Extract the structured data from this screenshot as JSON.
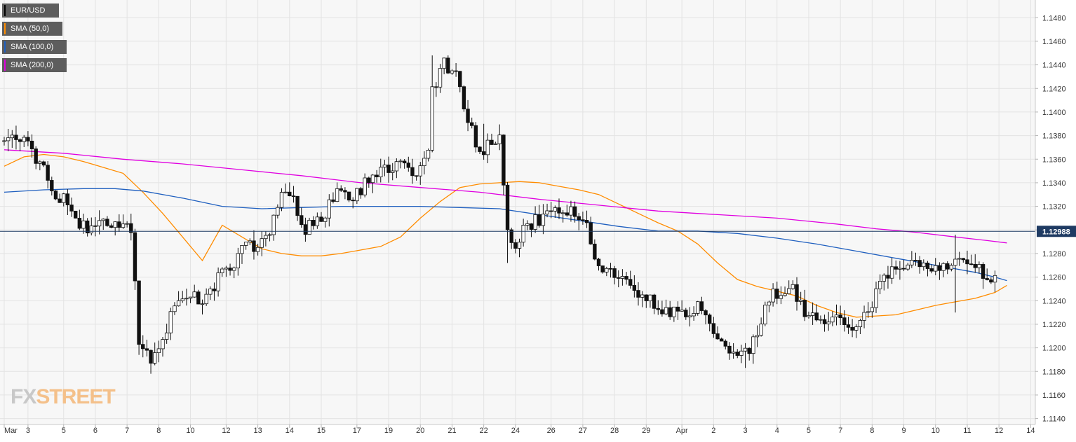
{
  "legend": [
    {
      "label": "EUR/USD",
      "color": "#000000"
    },
    {
      "label": "SMA (50,0)",
      "color": "#ff8c00"
    },
    {
      "label": "SMA (100,0)",
      "color": "#1f5fbf"
    },
    {
      "label": "SMA (200,0)",
      "color": "#e000e0"
    }
  ],
  "watermark": {
    "fx": "FX",
    "street": "STREET"
  },
  "chart_data": {
    "type": "candlestick",
    "title": "",
    "xlabel": "",
    "ylabel": "",
    "grid": true,
    "legend_position": "top-left",
    "ylim": [
      1.1135,
      1.1495
    ],
    "x_count": 250,
    "yticks": [
      "1.1140",
      "1.1160",
      "1.1180",
      "1.1200",
      "1.1220",
      "1.1240",
      "1.1260",
      "1.1280",
      "1.1300",
      "1.1320",
      "1.1340",
      "1.1360",
      "1.1380",
      "1.1400",
      "1.1420",
      "1.1440",
      "1.1460",
      "1.1480"
    ],
    "xticks": [
      {
        "i": 0,
        "label": "Mar"
      },
      {
        "i": 6,
        "label": "3"
      },
      {
        "i": 15,
        "label": "5"
      },
      {
        "i": 23,
        "label": "6"
      },
      {
        "i": 31,
        "label": "7"
      },
      {
        "i": 39,
        "label": "8"
      },
      {
        "i": 47,
        "label": "10"
      },
      {
        "i": 56,
        "label": "12"
      },
      {
        "i": 64,
        "label": "13"
      },
      {
        "i": 72,
        "label": "14"
      },
      {
        "i": 80,
        "label": "15"
      },
      {
        "i": 89,
        "label": "17"
      },
      {
        "i": 97,
        "label": "19"
      },
      {
        "i": 105,
        "label": "20"
      },
      {
        "i": 113,
        "label": "21"
      },
      {
        "i": 121,
        "label": "22"
      },
      {
        "i": 129,
        "label": "24"
      },
      {
        "i": 138,
        "label": "26"
      },
      {
        "i": 146,
        "label": "27"
      },
      {
        "i": 154,
        "label": "28"
      },
      {
        "i": 162,
        "label": "29"
      },
      {
        "i": 171,
        "label": "Apr"
      },
      {
        "i": 179,
        "label": "2"
      },
      {
        "i": 187,
        "label": "3"
      },
      {
        "i": 195,
        "label": "4"
      },
      {
        "i": 203,
        "label": "5"
      },
      {
        "i": 211,
        "label": "7"
      },
      {
        "i": 219,
        "label": "8"
      },
      {
        "i": 227,
        "label": "9"
      },
      {
        "i": 235,
        "label": "10"
      },
      {
        "i": 243,
        "label": "11"
      },
      {
        "i": 251,
        "label": "12"
      },
      {
        "i": 259,
        "label": "14"
      }
    ],
    "current_price": {
      "value": 1.12988,
      "label": "1.12988"
    },
    "anchors": [
      [
        0,
        1.1375
      ],
      [
        3,
        1.1382
      ],
      [
        6,
        1.1372
      ],
      [
        8,
        1.1355
      ],
      [
        10,
        1.135
      ],
      [
        12,
        1.1335
      ],
      [
        15,
        1.1325
      ],
      [
        19,
        1.1305
      ],
      [
        22,
        1.1298
      ],
      [
        25,
        1.131
      ],
      [
        30,
        1.1305
      ],
      [
        32,
        1.13
      ],
      [
        34,
        1.1205
      ],
      [
        37,
        1.119
      ],
      [
        42,
        1.1225
      ],
      [
        46,
        1.1245
      ],
      [
        50,
        1.124
      ],
      [
        54,
        1.1258
      ],
      [
        58,
        1.127
      ],
      [
        61,
        1.129
      ],
      [
        64,
        1.128
      ],
      [
        67,
        1.13
      ],
      [
        70,
        1.133
      ],
      [
        73,
        1.1325
      ],
      [
        76,
        1.13
      ],
      [
        80,
        1.131
      ],
      [
        84,
        1.133
      ],
      [
        88,
        1.1325
      ],
      [
        92,
        1.1345
      ],
      [
        96,
        1.135
      ],
      [
        100,
        1.1355
      ],
      [
        104,
        1.135
      ],
      [
        107,
        1.137
      ],
      [
        108,
        1.142
      ],
      [
        111,
        1.144
      ],
      [
        114,
        1.143
      ],
      [
        117,
        1.1395
      ],
      [
        120,
        1.1365
      ],
      [
        123,
        1.1375
      ],
      [
        125,
        1.1382
      ],
      [
        127,
        1.13
      ],
      [
        129,
        1.129
      ],
      [
        132,
        1.1305
      ],
      [
        136,
        1.131
      ],
      [
        140,
        1.132
      ],
      [
        144,
        1.1315
      ],
      [
        147,
        1.131
      ],
      [
        149,
        1.1275
      ],
      [
        152,
        1.1265
      ],
      [
        156,
        1.1258
      ],
      [
        160,
        1.1245
      ],
      [
        164,
        1.1238
      ],
      [
        168,
        1.123
      ],
      [
        172,
        1.1232
      ],
      [
        176,
        1.1235
      ],
      [
        179,
        1.121
      ],
      [
        183,
        1.12
      ],
      [
        186,
        1.1195
      ],
      [
        188,
        1.1195
      ],
      [
        191,
        1.1225
      ],
      [
        194,
        1.1245
      ],
      [
        199,
        1.125
      ],
      [
        203,
        1.1225
      ],
      [
        207,
        1.1225
      ],
      [
        210,
        1.1222
      ],
      [
        213,
        1.1218
      ],
      [
        216,
        1.1222
      ],
      [
        219,
        1.1238
      ],
      [
        222,
        1.1265
      ],
      [
        226,
        1.1265
      ],
      [
        230,
        1.1272
      ],
      [
        234,
        1.1268
      ],
      [
        238,
        1.127
      ],
      [
        242,
        1.1275
      ],
      [
        245,
        1.127
      ],
      [
        248,
        1.1262
      ],
      [
        250,
        1.126
      ],
      [
        252,
        1.129
      ],
      [
        254,
        1.1305
      ],
      [
        256,
        1.1305
      ],
      [
        258,
        1.1299
      ]
    ],
    "spikes": [
      {
        "i": 34,
        "low": 1.1205
      },
      {
        "i": 37,
        "low": 1.1178
      },
      {
        "i": 108,
        "high": 1.1448
      },
      {
        "i": 121,
        "high": 1.139
      },
      {
        "i": 127,
        "low": 1.1272
      },
      {
        "i": 187,
        "low": 1.1183
      },
      {
        "i": 240,
        "low": 1.123
      },
      {
        "i": 240,
        "high": 1.1296
      },
      {
        "i": 255,
        "high": 1.1327
      }
    ],
    "series": [
      {
        "name": "SMA (50,0)",
        "color": "#ff8c00",
        "points": [
          [
            0,
            1.1354
          ],
          [
            5,
            1.1362
          ],
          [
            10,
            1.1364
          ],
          [
            15,
            1.1362
          ],
          [
            20,
            1.1358
          ],
          [
            25,
            1.1353
          ],
          [
            30,
            1.1348
          ],
          [
            35,
            1.1332
          ],
          [
            40,
            1.1314
          ],
          [
            45,
            1.1294
          ],
          [
            50,
            1.1274
          ],
          [
            55,
            1.1304
          ],
          [
            60,
            1.1294
          ],
          [
            65,
            1.1284
          ],
          [
            70,
            1.128
          ],
          [
            75,
            1.1278
          ],
          [
            80,
            1.1278
          ],
          [
            85,
            1.128
          ],
          [
            90,
            1.1283
          ],
          [
            95,
            1.1286
          ],
          [
            100,
            1.1294
          ],
          [
            105,
            1.131
          ],
          [
            110,
            1.1324
          ],
          [
            115,
            1.1336
          ],
          [
            120,
            1.1339
          ],
          [
            125,
            1.134
          ],
          [
            130,
            1.1341
          ],
          [
            135,
            1.134
          ],
          [
            140,
            1.1337
          ],
          [
            145,
            1.1334
          ],
          [
            150,
            1.133
          ],
          [
            155,
            1.1322
          ],
          [
            160,
            1.1314
          ],
          [
            165,
            1.1306
          ],
          [
            170,
            1.1299
          ],
          [
            175,
            1.1288
          ],
          [
            180,
            1.1272
          ],
          [
            185,
            1.1258
          ],
          [
            190,
            1.1252
          ],
          [
            195,
            1.1248
          ],
          [
            200,
            1.1244
          ],
          [
            205,
            1.1236
          ],
          [
            210,
            1.123
          ],
          [
            215,
            1.1226
          ],
          [
            220,
            1.1227
          ],
          [
            225,
            1.1228
          ],
          [
            230,
            1.1232
          ],
          [
            235,
            1.1236
          ],
          [
            240,
            1.1239
          ],
          [
            245,
            1.1242
          ],
          [
            250,
            1.1247
          ],
          [
            253,
            1.1253
          ]
        ]
      },
      {
        "name": "SMA (100,0)",
        "color": "#1f5fbf",
        "points": [
          [
            0,
            1.1332
          ],
          [
            10,
            1.1334
          ],
          [
            20,
            1.1335
          ],
          [
            28,
            1.1335
          ],
          [
            35,
            1.1333
          ],
          [
            45,
            1.1327
          ],
          [
            55,
            1.132
          ],
          [
            65,
            1.1318
          ],
          [
            75,
            1.1319
          ],
          [
            85,
            1.132
          ],
          [
            95,
            1.132
          ],
          [
            105,
            1.132
          ],
          [
            115,
            1.1319
          ],
          [
            125,
            1.1318
          ],
          [
            135,
            1.1313
          ],
          [
            145,
            1.1308
          ],
          [
            155,
            1.1303
          ],
          [
            165,
            1.1299
          ],
          [
            170,
            1.1299
          ],
          [
            175,
            1.1299
          ],
          [
            185,
            1.1297
          ],
          [
            195,
            1.1293
          ],
          [
            205,
            1.1288
          ],
          [
            215,
            1.1282
          ],
          [
            225,
            1.1276
          ],
          [
            235,
            1.127
          ],
          [
            245,
            1.1264
          ],
          [
            250,
            1.126
          ],
          [
            253,
            1.1257
          ]
        ]
      },
      {
        "name": "SMA (200,0)",
        "color": "#e000e0",
        "points": [
          [
            0,
            1.1368
          ],
          [
            15,
            1.1365
          ],
          [
            30,
            1.136
          ],
          [
            45,
            1.1356
          ],
          [
            60,
            1.1351
          ],
          [
            75,
            1.1346
          ],
          [
            90,
            1.134
          ],
          [
            105,
            1.1336
          ],
          [
            120,
            1.1332
          ],
          [
            135,
            1.1326
          ],
          [
            150,
            1.1321
          ],
          [
            165,
            1.1316
          ],
          [
            180,
            1.1313
          ],
          [
            195,
            1.131
          ],
          [
            210,
            1.1305
          ],
          [
            220,
            1.1301
          ],
          [
            230,
            1.1298
          ],
          [
            240,
            1.1294
          ],
          [
            248,
            1.1291
          ],
          [
            253,
            1.1289
          ]
        ]
      }
    ]
  }
}
